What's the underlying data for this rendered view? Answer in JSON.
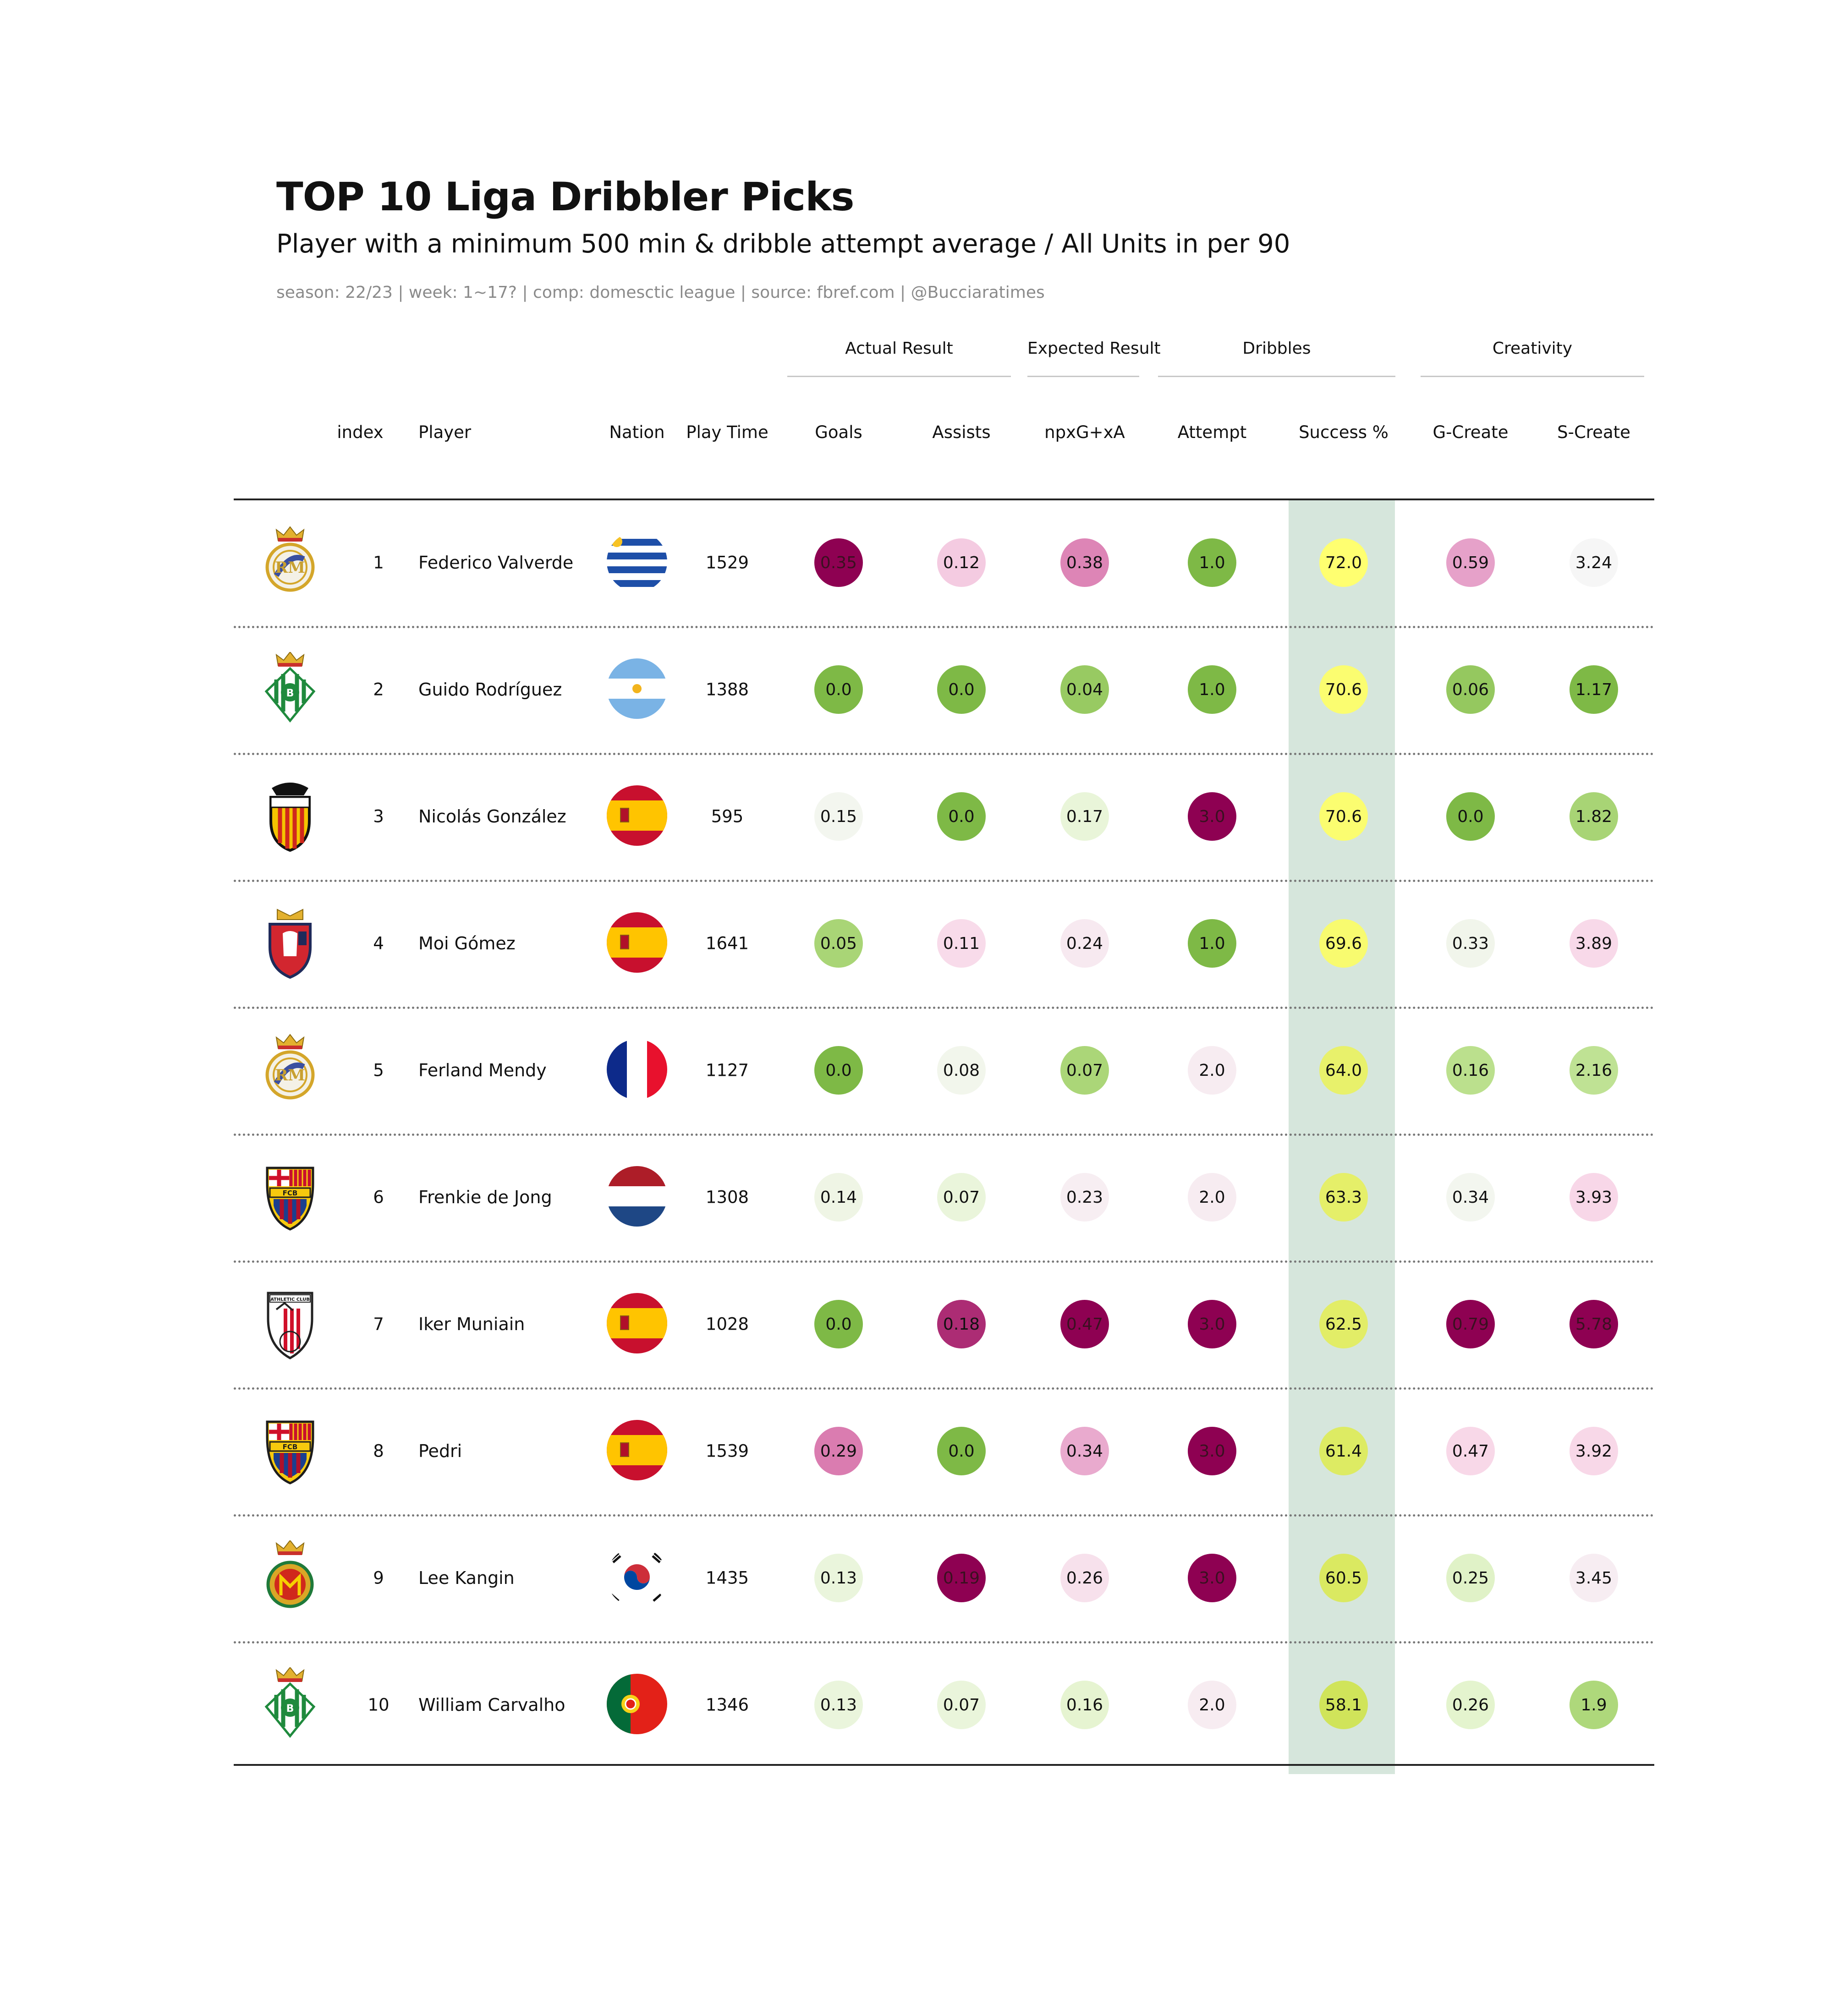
{
  "title": "TOP 10 Liga Dribbler Picks",
  "subtitle": "Player with a minimum 500 min & dribble attempt average / All Units in per 90",
  "caption": "season: 22/23 | week: 1~17? | comp: domesctic league | source: fbref.com | @Bucciaratimes",
  "groups": [
    "Actual Result",
    "Expected Result",
    "Dribbles",
    "Creativity"
  ],
  "headers": {
    "index": "index",
    "player": "Player",
    "nation": "Nation",
    "playtime": "Play Time",
    "goals": "Goals",
    "assists": "Assists",
    "npxg": "npxG+xA",
    "attempt": "Attempt",
    "success": "Success %",
    "gcreate": "G-Create",
    "screate": "S-Create"
  },
  "highlight_color": "#d6e6dc",
  "chart_data": {
    "type": "table",
    "title": "TOP 10 Liga Dribbler Picks",
    "columns": [
      "index",
      "Player",
      "Nation",
      "Play Time",
      "Goals",
      "Assists",
      "npxG+xA",
      "Attempt",
      "Success %",
      "G-Create",
      "S-Create"
    ],
    "rows": [
      {
        "index": "1",
        "player": "Federico Valverde",
        "club": "Real Madrid",
        "nation": "uruguay",
        "playtime": "1529",
        "goals": "0.35",
        "assists": "0.12",
        "npxg": "0.38",
        "attempt": "1.0",
        "success": "72.0",
        "gcreate": "0.59",
        "screate": "3.24"
      },
      {
        "index": "2",
        "player": "Guido Rodríguez",
        "club": "Real Betis",
        "nation": "argentina",
        "playtime": "1388",
        "goals": "0.0",
        "assists": "0.0",
        "npxg": "0.04",
        "attempt": "1.0",
        "success": "70.6",
        "gcreate": "0.06",
        "screate": "1.17"
      },
      {
        "index": "3",
        "player": "Nicolás González",
        "club": "Valencia",
        "nation": "spain",
        "playtime": "595",
        "goals": "0.15",
        "assists": "0.0",
        "npxg": "0.17",
        "attempt": "3.0",
        "success": "70.6",
        "gcreate": "0.0",
        "screate": "1.82"
      },
      {
        "index": "4",
        "player": "Moi Gómez",
        "club": "Osasuna",
        "nation": "spain",
        "playtime": "1641",
        "goals": "0.05",
        "assists": "0.11",
        "npxg": "0.24",
        "attempt": "1.0",
        "success": "69.6",
        "gcreate": "0.33",
        "screate": "3.89"
      },
      {
        "index": "5",
        "player": "Ferland Mendy",
        "club": "Real Madrid",
        "nation": "france",
        "playtime": "1127",
        "goals": "0.0",
        "assists": "0.08",
        "npxg": "0.07",
        "attempt": "2.0",
        "success": "64.0",
        "gcreate": "0.16",
        "screate": "2.16"
      },
      {
        "index": "6",
        "player": "Frenkie de Jong",
        "club": "Barcelona",
        "nation": "netherlands",
        "playtime": "1308",
        "goals": "0.14",
        "assists": "0.07",
        "npxg": "0.23",
        "attempt": "2.0",
        "success": "63.3",
        "gcreate": "0.34",
        "screate": "3.93"
      },
      {
        "index": "7",
        "player": "Iker Muniain",
        "club": "Athletic Club",
        "nation": "spain",
        "playtime": "1028",
        "goals": "0.0",
        "assists": "0.18",
        "npxg": "0.47",
        "attempt": "3.0",
        "success": "62.5",
        "gcreate": "0.79",
        "screate": "5.78"
      },
      {
        "index": "8",
        "player": "Pedri",
        "club": "Barcelona",
        "nation": "spain",
        "playtime": "1539",
        "goals": "0.29",
        "assists": "0.0",
        "npxg": "0.34",
        "attempt": "3.0",
        "success": "61.4",
        "gcreate": "0.47",
        "screate": "3.92"
      },
      {
        "index": "9",
        "player": "Lee Kangin",
        "club": "Mallorca",
        "nation": "korea",
        "playtime": "1435",
        "goals": "0.13",
        "assists": "0.19",
        "npxg": "0.26",
        "attempt": "3.0",
        "success": "60.5",
        "gcreate": "0.25",
        "screate": "3.45"
      },
      {
        "index": "10",
        "player": "William Carvalho",
        "club": "Real Betis",
        "nation": "portugal",
        "playtime": "1346",
        "goals": "0.13",
        "assists": "0.07",
        "npxg": "0.16",
        "attempt": "2.0",
        "success": "58.1",
        "gcreate": "0.26",
        "screate": "1.9"
      }
    ],
    "scales": {
      "goals": {
        "min": 0,
        "max": 0.35,
        "colormap": "diverging green-pink"
      },
      "assists": {
        "min": 0,
        "max": 0.19,
        "colormap": "diverging green-pink"
      },
      "npxg": {
        "min": 0,
        "max": 0.47,
        "colormap": "diverging green-pink"
      },
      "attempt": {
        "min": 1,
        "max": 3,
        "colormap": "diverging green-pink"
      },
      "success": {
        "min": 58.1,
        "max": 72.0,
        "colormap": "yellow-green"
      },
      "gcreate": {
        "min": 0,
        "max": 0.79,
        "colormap": "diverging green-pink"
      },
      "screate": {
        "min": 1.17,
        "max": 5.78,
        "colormap": "diverging green-pink"
      }
    }
  }
}
